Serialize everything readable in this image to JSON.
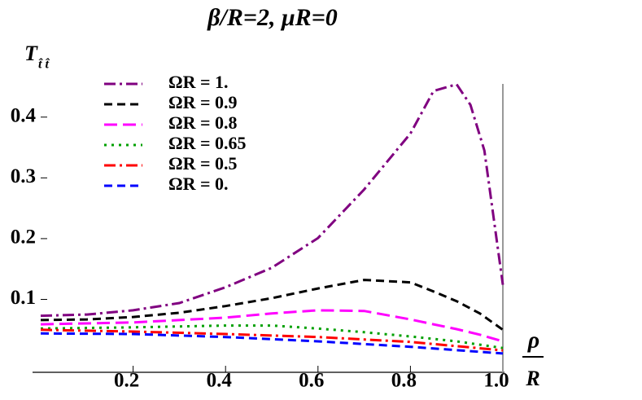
{
  "chart_data": {
    "type": "line",
    "title": "β/R=2, μR=0",
    "y_label": "T",
    "y_label_sub": "t̂ t̂",
    "x_label_num": "ρ",
    "x_label_den": "R",
    "xlim": [
      0,
      1
    ],
    "ylim": [
      -0.02,
      0.46
    ],
    "xticks": [
      0.2,
      0.4,
      0.6,
      0.8,
      {
        "value": 1,
        "label": "1.0"
      }
    ],
    "yticks": [
      0.1,
      0.2,
      0.3,
      0.4
    ],
    "legend": "upper left",
    "grid": false,
    "series": [
      {
        "name": "ΩR = 1.",
        "color": "#800080",
        "style": "dashdot",
        "x": [
          0,
          0.1,
          0.2,
          0.3,
          0.4,
          0.5,
          0.6,
          0.7,
          0.8,
          0.85,
          0.9,
          0.93,
          0.96,
          1
        ],
        "values": [
          0.073,
          0.075,
          0.082,
          0.094,
          0.12,
          0.152,
          0.201,
          0.281,
          0.373,
          0.443,
          0.454,
          0.42,
          0.345,
          0.124
        ]
      },
      {
        "name": "ΩR = 0.9",
        "color": "#000000",
        "style": "dashed",
        "x": [
          0,
          0.1,
          0.2,
          0.3,
          0.4,
          0.5,
          0.6,
          0.7,
          0.8,
          0.85,
          0.9,
          0.95,
          1
        ],
        "values": [
          0.066,
          0.067,
          0.071,
          0.078,
          0.089,
          0.102,
          0.118,
          0.132,
          0.128,
          0.113,
          0.097,
          0.077,
          0.05
        ]
      },
      {
        "name": "ΩR = 0.8",
        "color": "#ff00ff",
        "style": "longdash",
        "x": [
          0,
          0.2,
          0.4,
          0.5,
          0.6,
          0.7,
          0.8,
          0.85,
          0.9,
          0.95,
          1
        ],
        "values": [
          0.059,
          0.062,
          0.07,
          0.077,
          0.082,
          0.081,
          0.067,
          0.059,
          0.051,
          0.042,
          0.031
        ]
      },
      {
        "name": "ΩR = 0.65",
        "color": "#00a000",
        "style": "dotted",
        "x": [
          0,
          0.2,
          0.4,
          0.5,
          0.6,
          0.7,
          0.8,
          0.9,
          1
        ],
        "values": [
          0.052,
          0.054,
          0.057,
          0.057,
          0.052,
          0.046,
          0.039,
          0.031,
          0.02
        ]
      },
      {
        "name": "ΩR = 0.5",
        "color": "#ff0000",
        "style": "dashdot",
        "x": [
          0,
          0.2,
          0.4,
          0.6,
          0.8,
          1
        ],
        "values": [
          0.05,
          0.047,
          0.043,
          0.038,
          0.03,
          0.016
        ]
      },
      {
        "name": "ΩR = 0.",
        "color": "#0000ff",
        "style": "dashed",
        "x": [
          0,
          0.2,
          0.4,
          0.6,
          0.8,
          1
        ],
        "values": [
          0.044,
          0.043,
          0.038,
          0.031,
          0.022,
          0.011
        ]
      }
    ]
  }
}
